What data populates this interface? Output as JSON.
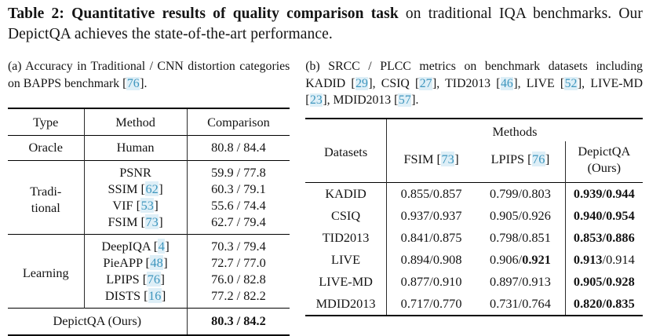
{
  "colors": {
    "citation": "#3d95bd",
    "citation_halo": "rgba(168,212,235,0.38)",
    "rule": "#000000",
    "text": "#141414"
  },
  "caption": {
    "segments": [
      {
        "text": "Table 2: Quantitative results of quality comparison task",
        "bold": true
      },
      {
        "text": " on traditional IQA benchmarks. Our DepictQA achieves the state-of-the-art performance."
      }
    ]
  },
  "subcaption_a": {
    "segments": [
      {
        "text": "(a) Accuracy in Traditional / CNN distortion categories on BAPPS benchmark ["
      },
      {
        "cite": "76"
      },
      {
        "text": "]."
      }
    ]
  },
  "subcaption_b": {
    "segments": [
      {
        "text": "(b) SRCC / PLCC metrics on benchmark datasets including KADID ["
      },
      {
        "cite": "29"
      },
      {
        "text": "], CSIQ ["
      },
      {
        "cite": "27"
      },
      {
        "text": "], TID2013 ["
      },
      {
        "cite": "46"
      },
      {
        "text": "], LIVE ["
      },
      {
        "cite": "52"
      },
      {
        "text": "], LIVE-MD ["
      },
      {
        "cite": "23"
      },
      {
        "text": "], MDID2013 ["
      },
      {
        "cite": "57"
      },
      {
        "text": "]."
      }
    ]
  },
  "table_a": {
    "headers": {
      "type": "Type",
      "method": "Method",
      "comparison": "Comparison"
    },
    "oracle": {
      "type": "Oracle",
      "method": "Human",
      "comparison": "80.8 / 84.4"
    },
    "groups": [
      {
        "type": "Tradi-\ntional",
        "rows": [
          {
            "method": [
              {
                "text": "PSNR"
              }
            ],
            "comparison": "59.9 / 77.8"
          },
          {
            "method": [
              {
                "text": "SSIM ["
              },
              {
                "cite": "62"
              },
              {
                "text": "]"
              }
            ],
            "comparison": "60.3 / 79.1"
          },
          {
            "method": [
              {
                "text": "VIF ["
              },
              {
                "cite": "53"
              },
              {
                "text": "]"
              }
            ],
            "comparison": "55.6 / 74.4"
          },
          {
            "method": [
              {
                "text": "FSIM ["
              },
              {
                "cite": "73"
              },
              {
                "text": "]"
              }
            ],
            "comparison": "62.7 / 79.4"
          }
        ]
      },
      {
        "type": "Learning",
        "rows": [
          {
            "method": [
              {
                "text": "DeepIQA ["
              },
              {
                "cite": "4"
              },
              {
                "text": "]"
              }
            ],
            "comparison": "70.3 / 79.4"
          },
          {
            "method": [
              {
                "text": "PieAPP ["
              },
              {
                "cite": "48"
              },
              {
                "text": "]"
              }
            ],
            "comparison": "72.7 / 77.0"
          },
          {
            "method": [
              {
                "text": "LPIPS ["
              },
              {
                "cite": "76"
              },
              {
                "text": "]"
              }
            ],
            "comparison": "76.0 / 82.8"
          },
          {
            "method": [
              {
                "text": "DISTS ["
              },
              {
                "cite": "16"
              },
              {
                "text": "]"
              }
            ],
            "comparison": "77.2 / 82.2"
          }
        ]
      }
    ],
    "final": {
      "label": "DepictQA (Ours)",
      "comparison": [
        {
          "text": "80.3 / 84.2",
          "bold": true
        }
      ]
    }
  },
  "table_b": {
    "headers": {
      "datasets": "Datasets",
      "methods": "Methods",
      "fsim": [
        {
          "text": "FSIM ["
        },
        {
          "cite": "73"
        },
        {
          "text": "]"
        }
      ],
      "lpips": [
        {
          "text": "LPIPS ["
        },
        {
          "cite": "76"
        },
        {
          "text": "]"
        }
      ],
      "ours": "DepictQA\n(Ours)"
    },
    "rows": [
      {
        "dataset": "KADID",
        "fsim": "0.855/0.857",
        "lpips": [
          {
            "text": "0.799/0.803"
          }
        ],
        "ours": [
          {
            "text": "0.939/0.944",
            "bold": true
          }
        ]
      },
      {
        "dataset": "CSIQ",
        "fsim": "0.937/0.937",
        "lpips": [
          {
            "text": "0.905/0.926"
          }
        ],
        "ours": [
          {
            "text": "0.940/0.954",
            "bold": true
          }
        ]
      },
      {
        "dataset": "TID2013",
        "fsim": "0.841/0.875",
        "lpips": [
          {
            "text": "0.798/0.851"
          }
        ],
        "ours": [
          {
            "text": "0.853/0.886",
            "bold": true
          }
        ]
      },
      {
        "dataset": "LIVE",
        "fsim": "0.894/0.908",
        "lpips": [
          {
            "text": "0.906/"
          },
          {
            "text": "0.921",
            "bold": true
          }
        ],
        "ours": [
          {
            "text": "0.913",
            "bold": true
          },
          {
            "text": "/0.914"
          }
        ]
      },
      {
        "dataset": "LIVE-MD",
        "fsim": "0.877/0.910",
        "lpips": [
          {
            "text": "0.897/0.913"
          }
        ],
        "ours": [
          {
            "text": "0.905/0.928",
            "bold": true
          }
        ]
      },
      {
        "dataset": "MDID2013",
        "fsim": "0.717/0.770",
        "lpips": [
          {
            "text": "0.731/0.764"
          }
        ],
        "ours": [
          {
            "text": "0.820/0.835",
            "bold": true
          }
        ]
      }
    ]
  }
}
